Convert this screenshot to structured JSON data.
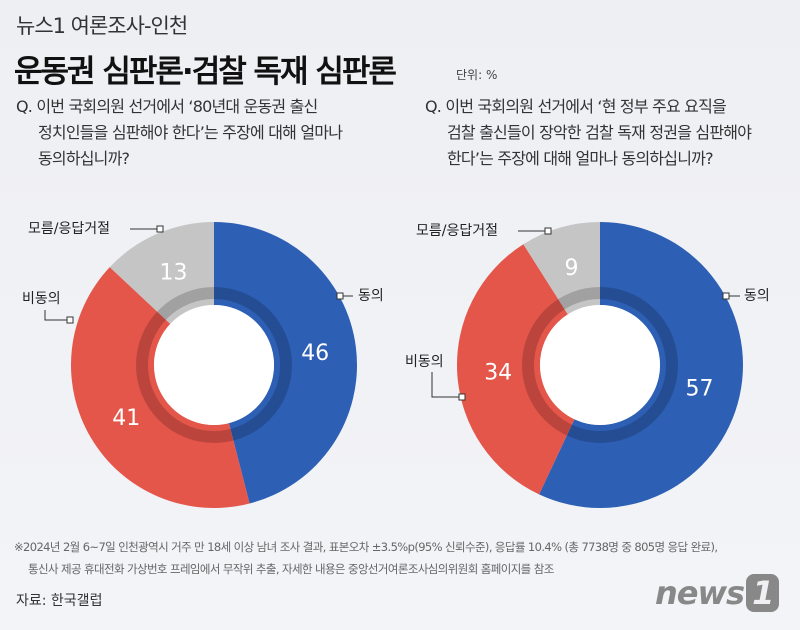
{
  "header": {
    "kicker": "뉴스1 여론조사-인천",
    "title": "운동권 심판론·검찰 독재 심판론",
    "unit": "단위: %"
  },
  "chart_data": [
    {
      "type": "pie",
      "donut": true,
      "question_line1": "Q. 이번 국회의원 선거에서 ‘80년대 운동권 출신",
      "question_line2": "정치인들을 심판해야 한다’는 주장에 대해 얼마나",
      "question_line3": "동의하십니까?",
      "categories": [
        "동의",
        "비동의",
        "모름/응답거절"
      ],
      "values": [
        46,
        41,
        13
      ],
      "colors": [
        "#2d5fb4",
        "#e4554a",
        "#c5c5c5"
      ]
    },
    {
      "type": "pie",
      "donut": true,
      "question_line1": "Q. 이번 국회의원 선거에서  ‘현 정부 주요 요직을",
      "question_line2": "검찰 출신들이 장악한 검찰 독재 정권을 심판해야",
      "question_line3": "한다’는 주장에 대해 얼마나 동의하십니까?",
      "categories": [
        "동의",
        "비동의",
        "모름/응답거절"
      ],
      "values": [
        57,
        34,
        9
      ],
      "colors": [
        "#2d5fb4",
        "#e4554a",
        "#c5c5c5"
      ]
    }
  ],
  "footer": {
    "note_line1": "※2024년 2월 6~7일 인천광역시 거주 만 18세 이상 남녀 조사 결과, 표본오차 ±3.5%p(95% 신뢰수준), 응답률 10.4% (총 7738명 중 805명 응답 완료),",
    "note_line2": "통신사 제공 휴대전화 가상번호 프레임에서 무작위 추출, 자세한 내용은 중앙선거여론조사심의위원회 홈페이지를 참조",
    "source": "자료: 한국갤럽",
    "logo": "news1"
  }
}
